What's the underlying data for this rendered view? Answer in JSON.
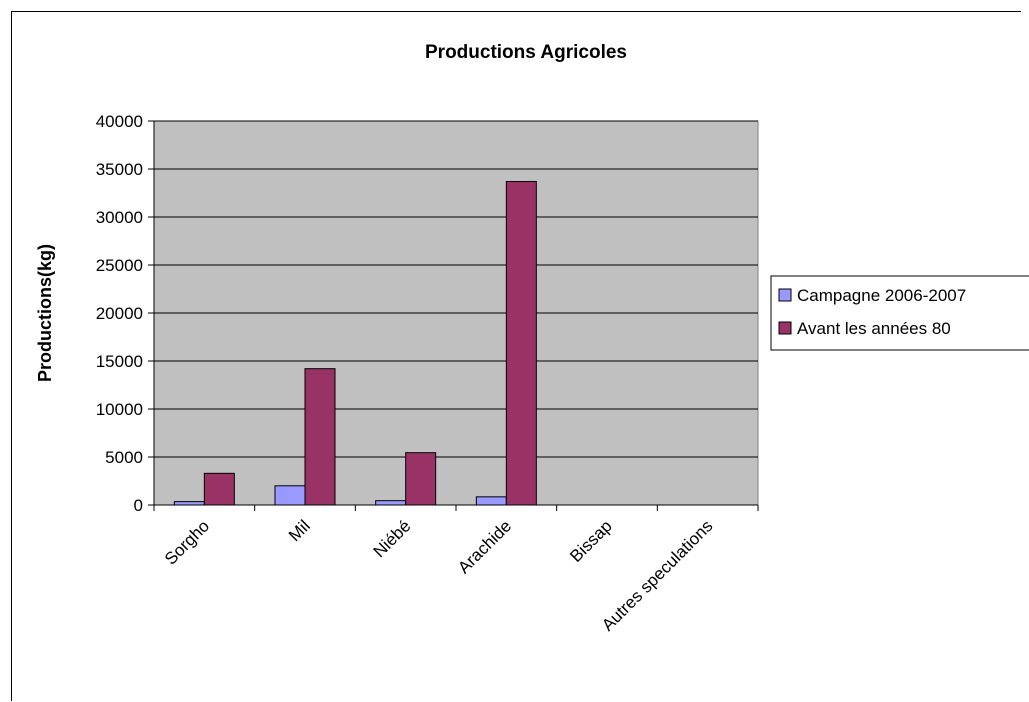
{
  "chart_data": {
    "type": "bar",
    "title": "Productions Agricoles",
    "xlabel": "",
    "ylabel": "Productions(kg)",
    "ylim": [
      0,
      40000
    ],
    "yticks": [
      0,
      5000,
      10000,
      15000,
      20000,
      25000,
      30000,
      35000,
      40000
    ],
    "grid": true,
    "legend_position": "right",
    "categories": [
      "Sorgho",
      "Mil",
      "Niébé",
      "Arachide",
      "Bissap",
      "Autres speculations"
    ],
    "series": [
      {
        "name": "Campagne 2006-2007",
        "color": "#9999ff",
        "values": [
          350,
          2000,
          450,
          850,
          0,
          0
        ]
      },
      {
        "name": "Avant les années 80",
        "color": "#993366",
        "values": [
          3300,
          14200,
          5450,
          33700,
          0,
          0
        ]
      }
    ],
    "plot_background": "#c0c0c0"
  }
}
